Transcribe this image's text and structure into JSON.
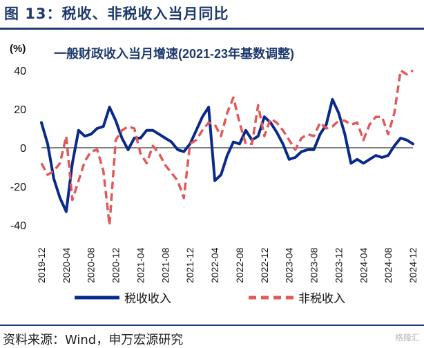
{
  "figure": {
    "title": "图 13：税收、非税收入当月同比",
    "source": "资料来源：Wind，申万宏源研究",
    "watermark": "格隆汇"
  },
  "colors": {
    "tax": "#0a2a8a",
    "nontax": "#e05a5a",
    "title_navy": "#1f3a6e",
    "axis": "#000000"
  },
  "chart_data": {
    "type": "line",
    "title": "一般财政收入当月增速(2021-23年基数调整)",
    "ylabel": "(%)",
    "xlabel": "",
    "ylim": [
      -40,
      40
    ],
    "yticks": [
      -40,
      -20,
      0,
      20,
      40
    ],
    "x": [
      "2019-12",
      "2020-01",
      "2020-02",
      "2020-03",
      "2020-04",
      "2020-05",
      "2020-06",
      "2020-07",
      "2020-08",
      "2020-09",
      "2020-10",
      "2020-11",
      "2020-12",
      "2021-01",
      "2021-02",
      "2021-03",
      "2021-04",
      "2021-05",
      "2021-06",
      "2021-07",
      "2021-08",
      "2021-09",
      "2021-10",
      "2021-11",
      "2021-12",
      "2022-01",
      "2022-02",
      "2022-03",
      "2022-04",
      "2022-05",
      "2022-06",
      "2022-07",
      "2022-08",
      "2022-09",
      "2022-10",
      "2022-11",
      "2022-12",
      "2023-01",
      "2023-02",
      "2023-03",
      "2023-04",
      "2023-05",
      "2023-06",
      "2023-07",
      "2023-08",
      "2023-09",
      "2023-10",
      "2023-11",
      "2023-12",
      "2024-01",
      "2024-02",
      "2024-03",
      "2024-04",
      "2024-05",
      "2024-06",
      "2024-07",
      "2024-08",
      "2024-09",
      "2024-10",
      "2024-11",
      "2024-12"
    ],
    "x_tick_labels": [
      "2019-12",
      "2020-04",
      "2020-08",
      "2020-12",
      "2021-04",
      "2021-08",
      "2021-12",
      "2022-04",
      "2022-08",
      "2022-12",
      "2023-04",
      "2023-08",
      "2023-12",
      "2024-04",
      "2024-08",
      "2024-12"
    ],
    "series": [
      {
        "name": "税收收入",
        "style": "solid",
        "values": [
          13,
          2,
          -16,
          -26,
          -33,
          -8,
          9,
          6,
          7,
          10,
          11,
          21,
          14,
          5,
          -1,
          5,
          5,
          9,
          9,
          7,
          5,
          3,
          -1,
          -2,
          2,
          9,
          16,
          21,
          -17,
          -14,
          -4,
          3,
          2,
          9,
          4,
          6,
          16,
          13,
          8,
          2,
          -6,
          -5,
          -2,
          -1,
          -1,
          7,
          12,
          25,
          18,
          7,
          -8,
          -6,
          -8,
          -6,
          -4,
          -5,
          -4,
          1,
          5,
          4,
          2
        ]
      },
      {
        "name": "非税收入",
        "style": "dashed",
        "values": [
          -8,
          -14,
          -12,
          -8,
          6,
          -27,
          -17,
          -7,
          -2,
          -1,
          -12,
          -43,
          4,
          9,
          11,
          10,
          -3,
          -8,
          1,
          -3,
          -9,
          -13,
          -17,
          -26,
          2,
          4,
          9,
          13,
          12,
          6,
          18,
          26,
          13,
          2,
          2,
          22,
          6,
          15,
          13,
          9,
          4,
          -1,
          5,
          7,
          6,
          13,
          10,
          11,
          14,
          14,
          12,
          13,
          4,
          12,
          16,
          16,
          7,
          18,
          40,
          38,
          40
        ]
      }
    ],
    "legend": "bottom",
    "grid": false
  }
}
